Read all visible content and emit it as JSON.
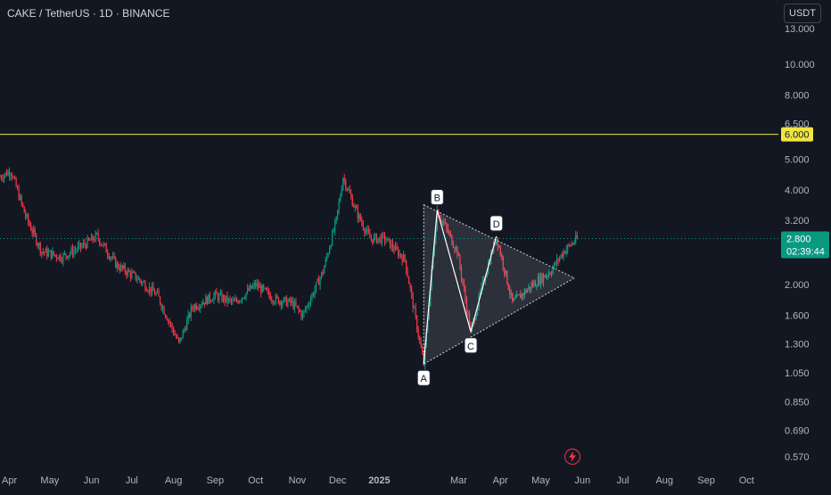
{
  "header": {
    "symbol_title": "CAKE / TetherUS · 1D · BINANCE",
    "currency_button": "USDT"
  },
  "colors": {
    "background": "#131722",
    "up": "#089981",
    "down": "#f23645",
    "level_line": "#f0e442",
    "price_tag": "#089981",
    "text": "#b2b5be",
    "icon": "#f23645"
  },
  "icons": {
    "flash": "lightning-bolt-icon"
  },
  "chart_data": {
    "type": "line",
    "y_scale": "log",
    "ylim": [
      0.52,
      16
    ],
    "y_ticks": [
      "13.000",
      "10.000",
      "8.000",
      "6.500",
      "5.000",
      "4.000",
      "3.200",
      "2.000",
      "1.600",
      "1.300",
      "1.050",
      "0.850",
      "0.690",
      "0.570"
    ],
    "x_ticks": [
      "Apr",
      "May",
      "Jun",
      "Jul",
      "Aug",
      "Sep",
      "Oct",
      "Nov",
      "Dec",
      "2025",
      "Mar",
      "Apr",
      "May",
      "Jun",
      "Jul",
      "Aug",
      "Sep",
      "Oct"
    ],
    "x_range": [
      "2024-03-25",
      "2025-10-24"
    ],
    "series": [
      {
        "values": [
          [
            "2024-03-25",
            4.4
          ],
          [
            "2024-04-02",
            4.6
          ],
          [
            "2024-04-13",
            3.3
          ],
          [
            "2024-04-25",
            2.55
          ],
          [
            "2024-05-10",
            2.45
          ],
          [
            "2024-05-25",
            2.65
          ],
          [
            "2024-06-05",
            2.85
          ],
          [
            "2024-06-20",
            2.3
          ],
          [
            "2024-07-05",
            2.1
          ],
          [
            "2024-07-20",
            1.85
          ],
          [
            "2024-08-05",
            1.3
          ],
          [
            "2024-08-15",
            1.7
          ],
          [
            "2024-09-01",
            1.85
          ],
          [
            "2024-09-15",
            1.75
          ],
          [
            "2024-10-01",
            2.0
          ],
          [
            "2024-10-15",
            1.8
          ],
          [
            "2024-10-28",
            1.75
          ],
          [
            "2024-11-05",
            1.6
          ],
          [
            "2024-11-20",
            2.2
          ],
          [
            "2024-11-30",
            3.2
          ],
          [
            "2024-12-05",
            4.4
          ],
          [
            "2024-12-15",
            3.4
          ],
          [
            "2024-12-25",
            2.8
          ],
          [
            "2025-01-05",
            2.8
          ],
          [
            "2025-01-20",
            2.4
          ],
          [
            "2025-02-03",
            1.12
          ],
          [
            "2025-02-13",
            3.45
          ],
          [
            "2025-02-28",
            2.55
          ],
          [
            "2025-03-10",
            1.42
          ],
          [
            "2025-03-20",
            2.1
          ],
          [
            "2025-03-29",
            2.85
          ],
          [
            "2025-04-10",
            1.75
          ],
          [
            "2025-04-25",
            2.0
          ],
          [
            "2025-05-08",
            2.2
          ],
          [
            "2025-05-18",
            2.55
          ],
          [
            "2025-05-28",
            2.8
          ]
        ]
      }
    ],
    "horizontal_level": {
      "value": 6.0,
      "label": "6.000"
    },
    "last_price": {
      "label": "2.800",
      "countdown": "02:39:44"
    },
    "pattern": {
      "type": "triangle",
      "points": [
        {
          "label": "A",
          "date": "2025-02-03",
          "value": 1.12
        },
        {
          "label": "B",
          "date": "2025-02-13",
          "value": 3.45
        },
        {
          "label": "C",
          "date": "2025-03-10",
          "value": 1.42
        },
        {
          "label": "D",
          "date": "2025-03-29",
          "value": 2.85
        }
      ],
      "apex": {
        "date": "2025-05-26",
        "value": 2.1
      }
    }
  }
}
